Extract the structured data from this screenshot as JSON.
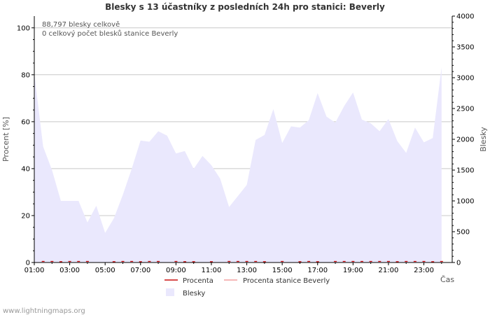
{
  "chart_data": {
    "type": "area",
    "title": "Blesky s 13 účastníky z posledních 24h pro stanici: Beverly",
    "xlabel": "Čas",
    "ylabel_left": "Procent   [%]",
    "ylabel_right": "Blesky",
    "ylim_left": [
      0,
      105
    ],
    "ylim_right": [
      0,
      4000
    ],
    "yticks_left": [
      "0",
      "20",
      "40",
      "60",
      "80",
      "100"
    ],
    "yticks_right": [
      "0",
      "500",
      "1000",
      "1500",
      "2000",
      "2500",
      "3000",
      "3500",
      "4000"
    ],
    "xticks": [
      "01:00",
      "03:00",
      "05:00",
      "07:00",
      "09:00",
      "11:00",
      "13:00",
      "15:00",
      "17:00",
      "19:00",
      "21:00",
      "23:00"
    ],
    "x_hours": [
      1,
      1.5,
      2,
      2.5,
      3,
      3.5,
      4,
      4.5,
      5,
      5.5,
      6,
      6.5,
      7,
      7.5,
      8,
      8.5,
      9,
      9.5,
      10,
      10.5,
      11,
      11.5,
      12,
      12.5,
      13,
      13.5,
      14,
      14.5,
      15,
      15.5,
      16,
      16.5,
      17,
      17.5,
      18,
      18.5,
      19,
      19.5,
      20,
      20.5,
      21,
      21.5,
      22,
      22.5,
      23,
      23.5,
      24
    ],
    "series": [
      {
        "name": "Blesky",
        "axis": "right",
        "color": "#eae8fd",
        "values": [
          3070,
          1880,
          1500,
          1000,
          1000,
          1000,
          650,
          920,
          480,
          720,
          1100,
          1520,
          1980,
          1960,
          2130,
          2060,
          1770,
          1810,
          1520,
          1730,
          1580,
          1360,
          900,
          1080,
          1260,
          1990,
          2070,
          2490,
          1940,
          2210,
          2190,
          2310,
          2750,
          2370,
          2270,
          2540,
          2760,
          2320,
          2260,
          2130,
          2330,
          1970,
          1780,
          2190,
          1950,
          2020,
          3170
        ]
      },
      {
        "name": "Procenta",
        "axis": "left",
        "color": "#cc1111",
        "values": [
          0,
          0.3,
          0.3,
          0.2,
          0.3,
          0.3,
          0.3,
          0,
          0,
          0.2,
          0.3,
          0.3,
          0.2,
          0.3,
          0.3,
          0,
          0.3,
          0.2,
          0.2,
          0,
          0.2,
          0,
          0.3,
          0.3,
          0.3,
          0.3,
          0.2,
          0,
          0.3,
          0,
          0.2,
          0.3,
          0.2,
          0,
          0.3,
          0.3,
          0.3,
          0.3,
          0.3,
          0.3,
          0.3,
          0.2,
          0.3,
          0.3,
          0.3,
          0.2,
          0.3
        ]
      },
      {
        "name": "Procenta stanice Beverly",
        "axis": "left",
        "color": "#f4a0a0",
        "values": [
          0,
          0,
          0,
          0,
          0,
          0,
          0,
          0,
          0,
          0,
          0,
          0,
          0,
          0,
          0,
          0,
          0,
          0,
          0,
          0,
          0,
          0,
          0,
          0,
          0,
          0,
          0,
          0,
          0,
          0,
          0,
          0,
          0,
          0,
          0,
          0,
          0,
          0,
          0,
          0,
          0,
          0,
          0,
          0,
          0,
          0,
          0
        ]
      }
    ],
    "annotations": [
      "88,797 blesky celkově",
      "0 celkový počet blesků stanice Beverly"
    ],
    "legend": [
      "Procenta",
      "Procenta stanice Beverly",
      "Blesky"
    ],
    "legend_position": "bottom"
  },
  "footer": "www.lightningmaps.org"
}
